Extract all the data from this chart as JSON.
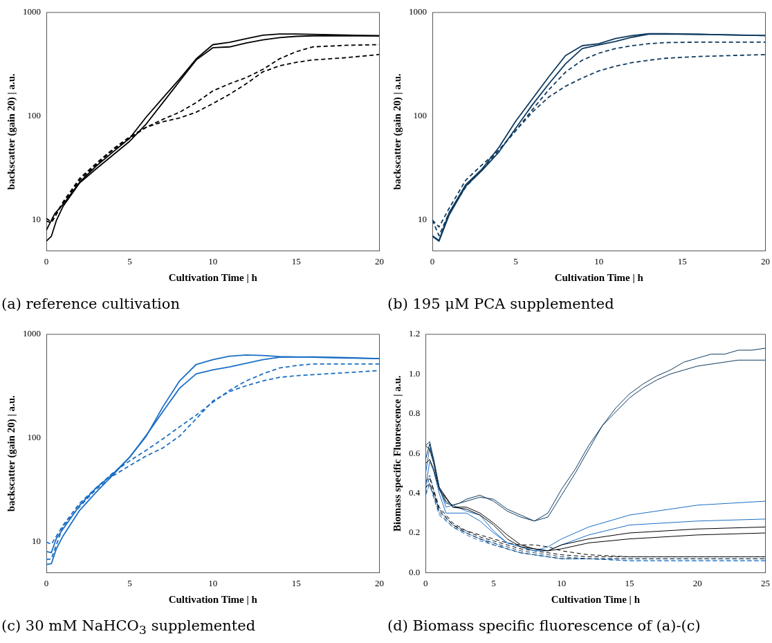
{
  "chart_data": [
    {
      "type": "line",
      "title": "(a) reference cultivation",
      "xlabel": "Cultivation Time | h",
      "ylabel": "backscatter (gain 20) | a.u.",
      "log": "y",
      "xlim": [
        0,
        20
      ],
      "xticks": [
        0,
        5,
        10,
        15,
        20
      ],
      "ylim": [
        5,
        1000
      ],
      "yticks": [
        10,
        100,
        1000
      ],
      "series": [
        {
          "color": "#000000",
          "line_style": "solid",
          "x": [
            0,
            0.5,
            1,
            2,
            3,
            4,
            5,
            6,
            7,
            8,
            9,
            10,
            11,
            12,
            13,
            14,
            15,
            16,
            18,
            20
          ],
          "values": [
            7.9,
            11.4,
            14,
            23,
            33,
            45,
            61,
            98,
            150,
            228,
            357,
            489,
            515,
            558,
            604,
            620,
            620,
            615,
            604,
            595
          ]
        },
        {
          "color": "#000000",
          "line_style": "solid",
          "x": [
            0,
            0.3,
            0.6,
            1,
            2,
            3,
            4,
            5,
            6,
            7,
            8,
            9,
            10,
            11,
            12,
            13,
            14,
            15,
            16,
            18,
            20
          ],
          "values": [
            6.2,
            6.9,
            9.8,
            13.4,
            22.6,
            31,
            42,
            57,
            84,
            135,
            217,
            348,
            457,
            465,
            507,
            543,
            572,
            588,
            595,
            595,
            595
          ]
        },
        {
          "color": "#000000",
          "line_style": "dashed",
          "x": [
            0,
            0.3,
            1,
            2,
            3,
            4,
            5,
            6,
            7,
            8,
            9,
            10,
            11,
            12,
            13,
            14,
            15,
            16,
            18,
            20
          ],
          "values": [
            10.3,
            9.5,
            14.8,
            25,
            35,
            48,
            63,
            78,
            93,
            109,
            135,
            175,
            205,
            235,
            282,
            357,
            418,
            465,
            482,
            489
          ]
        },
        {
          "color": "#000000",
          "line_style": "dashed",
          "x": [
            0,
            0.3,
            1,
            2,
            3,
            4,
            5,
            6,
            7,
            8,
            9,
            10,
            11,
            12,
            13,
            14,
            15,
            16,
            18,
            20
          ],
          "values": [
            9.7,
            9.3,
            14.5,
            24,
            34,
            47,
            61,
            78,
            88,
            96,
            109,
            132,
            162,
            205,
            267,
            305,
            330,
            348,
            366,
            393
          ]
        }
      ]
    },
    {
      "type": "line",
      "title": "(b) 195 μM PCA supplemented",
      "xlabel": "Cultivation Time | h",
      "ylabel": "backscatter (gain 20) | a.u.",
      "log": "y",
      "xlim": [
        0,
        20
      ],
      "xticks": [
        0,
        5,
        10,
        15,
        20
      ],
      "ylim": [
        5,
        1000
      ],
      "yticks": [
        10,
        100,
        1000
      ],
      "series": [
        {
          "color": "#0e3a5f",
          "line_style": "solid",
          "x": [
            0,
            0.4,
            1,
            2,
            3,
            4,
            5,
            6,
            7,
            8,
            9,
            10,
            11,
            12,
            13,
            14,
            16,
            18,
            20
          ],
          "values": [
            7.0,
            6.3,
            11.6,
            21.7,
            31,
            50,
            89,
            146,
            240,
            384,
            478,
            499,
            560,
            599,
            623,
            623,
            616,
            608,
            599
          ]
        },
        {
          "color": "#0e3a5f",
          "line_style": "solid",
          "x": [
            0,
            0.4,
            1,
            2,
            3,
            4,
            5,
            6,
            7,
            8,
            9,
            10,
            11,
            12,
            13,
            14,
            16,
            18,
            20
          ],
          "values": [
            6.9,
            6.2,
            11,
            21,
            30,
            45,
            76,
            128,
            205,
            320,
            449,
            486,
            525,
            577,
            617,
            620,
            615,
            606,
            598
          ]
        },
        {
          "color": "#0e3a5f",
          "line_style": "dashed",
          "x": [
            0,
            0.4,
            1,
            2,
            3,
            4,
            5,
            6,
            7,
            8,
            9,
            10,
            11,
            12,
            13,
            14,
            16,
            18,
            20
          ],
          "values": [
            9.9,
            8.5,
            12.8,
            24,
            34,
            47,
            72,
            115,
            180,
            266,
            346,
            405,
            449,
            478,
            499,
            512,
            517,
            517,
            517
          ]
        },
        {
          "color": "#0e3a5f",
          "line_style": "dashed",
          "x": [
            0,
            0.4,
            1,
            2,
            3,
            4,
            5,
            6,
            7,
            8,
            9,
            10,
            11,
            12,
            13,
            14,
            16,
            18,
            20
          ],
          "values": [
            9.9,
            7.0,
            11.6,
            20.6,
            31,
            47,
            72,
            109,
            153,
            194,
            233,
            273,
            303,
            328,
            346,
            361,
            376,
            384,
            392
          ]
        }
      ]
    },
    {
      "type": "line",
      "title": "(c) 30 mM NaHCO$_{3}$ supplemented",
      "xlabel": "Cultivation Time | h",
      "ylabel": "backscatter (gain 20) | a.u.",
      "log": "y",
      "xlim": [
        0,
        20
      ],
      "xticks": [
        0,
        5,
        10,
        15,
        20
      ],
      "ylim": [
        5,
        1000
      ],
      "yticks": [
        10,
        100,
        1000
      ],
      "series": [
        {
          "color": "#1a6ec4",
          "line_style": "solid",
          "x": [
            0,
            0.3,
            0.6,
            1,
            2,
            3,
            4,
            5,
            6,
            7,
            8,
            9,
            10,
            11,
            12,
            13,
            14,
            16,
            18,
            20
          ],
          "values": [
            8.0,
            7.8,
            10.7,
            13.2,
            22.3,
            33,
            45,
            65,
            104,
            200,
            355,
            512,
            569,
            615,
            631,
            625,
            610,
            600,
            590,
            583
          ]
        },
        {
          "color": "#1a6ec4",
          "line_style": "solid",
          "x": [
            0,
            0.3,
            0.6,
            1,
            2,
            3,
            4,
            5,
            6,
            7,
            8,
            9,
            10,
            11,
            12,
            13,
            14,
            16,
            18,
            20
          ],
          "values": [
            6.0,
            6.1,
            8.5,
            11.3,
            20,
            30,
            44,
            65,
            106,
            180,
            302,
            415,
            453,
            485,
            525,
            569,
            600,
            606,
            595,
            583
          ]
        },
        {
          "color": "#1a6ec4",
          "line_style": "dashed",
          "x": [
            0,
            0.3,
            1,
            2,
            3,
            4,
            5,
            6,
            7,
            8,
            9,
            10,
            11,
            12,
            13,
            14,
            15,
            16,
            18,
            20
          ],
          "values": [
            9.9,
            9.4,
            14.3,
            23.4,
            33,
            46,
            60,
            76,
            98,
            128,
            166,
            221,
            288,
            355,
            415,
            473,
            499,
            517,
            517,
            517
          ]
        },
        {
          "color": "#1a6ec4",
          "line_style": "dashed",
          "x": [
            0,
            0.3,
            1,
            2,
            3,
            4,
            5,
            6,
            7,
            8,
            9,
            10,
            11,
            12,
            13,
            14,
            15,
            16,
            18,
            20
          ],
          "values": [
            6.7,
            6.8,
            14,
            21.7,
            32,
            43,
            54,
            67,
            80,
            104,
            153,
            227,
            280,
            319,
            355,
            384,
            398,
            408,
            426,
            447
          ]
        }
      ]
    },
    {
      "type": "line",
      "title": "(d) Biomass specific fluorescence of (a)-(c)",
      "xlabel": "Cultivation Time | h",
      "ylabel": "Biomass specific Fluorescence | a.u.",
      "xlim": [
        0,
        25
      ],
      "xticks": [
        0,
        5,
        10,
        15,
        20,
        25
      ],
      "ylim": [
        0,
        1.2
      ],
      "yticks": [
        {
          "value": 0,
          "label": "0.0"
        },
        0.2,
        0.4,
        0.6,
        0.8,
        {
          "value": 1,
          "label": "1.0"
        },
        {
          "value": 1.2,
          "label": "1.2"
        }
      ],
      "series": [
        {
          "color": "#0e3a5f",
          "line_style": "solid",
          "x": [
            0,
            0.3,
            0.6,
            1,
            1.5,
            2,
            2.5,
            3,
            4,
            5,
            6,
            7,
            8,
            9,
            10,
            11,
            12,
            13,
            14,
            15,
            16,
            17,
            18,
            19,
            20,
            21,
            22,
            23,
            24,
            25
          ],
          "values": [
            0.64,
            0.66,
            0.57,
            0.43,
            0.36,
            0.34,
            0.35,
            0.37,
            0.39,
            0.36,
            0.31,
            0.28,
            0.26,
            0.3,
            0.42,
            0.52,
            0.64,
            0.74,
            0.83,
            0.9,
            0.95,
            0.99,
            1.02,
            1.06,
            1.08,
            1.1,
            1.1,
            1.12,
            1.12,
            1.13
          ]
        },
        {
          "color": "#0e3a5f",
          "line_style": "solid",
          "x": [
            0,
            0.3,
            0.6,
            1,
            1.5,
            2,
            2.5,
            3,
            4,
            5,
            6,
            7,
            8,
            9,
            10,
            11,
            12,
            13,
            14,
            15,
            16,
            17,
            18,
            19,
            20,
            21,
            22,
            23,
            24,
            25
          ],
          "values": [
            0.57,
            0.65,
            0.55,
            0.42,
            0.35,
            0.34,
            0.35,
            0.36,
            0.38,
            0.37,
            0.32,
            0.29,
            0.26,
            0.28,
            0.39,
            0.5,
            0.62,
            0.74,
            0.81,
            0.88,
            0.93,
            0.97,
            1.0,
            1.02,
            1.04,
            1.05,
            1.06,
            1.07,
            1.07,
            1.07
          ]
        },
        {
          "color": "#000000",
          "line_style": "solid",
          "x": [
            0,
            0.3,
            0.6,
            1,
            2,
            3,
            4,
            5,
            6,
            7,
            8,
            9,
            10,
            12,
            15,
            20,
            25
          ],
          "values": [
            0.64,
            0.62,
            0.55,
            0.43,
            0.33,
            0.33,
            0.3,
            0.25,
            0.19,
            0.14,
            0.12,
            0.11,
            0.14,
            0.17,
            0.2,
            0.22,
            0.23
          ]
        },
        {
          "color": "#000000",
          "line_style": "solid",
          "x": [
            0,
            0.3,
            0.6,
            1,
            2,
            3,
            4,
            5,
            6,
            7,
            8,
            9,
            10,
            12,
            15,
            20,
            25
          ],
          "values": [
            0.55,
            0.57,
            0.52,
            0.42,
            0.33,
            0.32,
            0.29,
            0.24,
            0.17,
            0.13,
            0.12,
            0.11,
            0.12,
            0.15,
            0.17,
            0.19,
            0.2
          ]
        },
        {
          "color": "#1a6ec4",
          "line_style": "solid",
          "x": [
            0,
            0.3,
            0.6,
            1,
            1.5,
            2,
            3,
            4,
            5,
            6,
            7,
            8,
            9,
            10,
            12,
            15,
            20,
            25
          ],
          "values": [
            0.5,
            0.63,
            0.57,
            0.43,
            0.33,
            0.34,
            0.31,
            0.29,
            0.21,
            0.15,
            0.13,
            0.11,
            0.13,
            0.17,
            0.23,
            0.29,
            0.34,
            0.36
          ]
        },
        {
          "color": "#1a6ec4",
          "line_style": "solid",
          "x": [
            0,
            0.3,
            0.6,
            1,
            1.5,
            2,
            3,
            4,
            5,
            6,
            7,
            8,
            9,
            10,
            12,
            15,
            20,
            25
          ],
          "values": [
            0.43,
            0.56,
            0.51,
            0.4,
            0.3,
            0.3,
            0.3,
            0.26,
            0.2,
            0.15,
            0.13,
            0.11,
            0.11,
            0.14,
            0.19,
            0.24,
            0.26,
            0.27
          ]
        },
        {
          "color": "#000000",
          "line_style": "dashed",
          "x": [
            0,
            0.3,
            1,
            2,
            3,
            4,
            5,
            6,
            7,
            8,
            9,
            10,
            12,
            15,
            20,
            25
          ],
          "values": [
            0.46,
            0.48,
            0.33,
            0.25,
            0.21,
            0.19,
            0.17,
            0.15,
            0.14,
            0.14,
            0.13,
            0.11,
            0.09,
            0.08,
            0.08,
            0.08
          ]
        },
        {
          "color": "#000000",
          "line_style": "dashed",
          "x": [
            0,
            0.3,
            1,
            2,
            3,
            4,
            5,
            6,
            7,
            8,
            9,
            10,
            12,
            15,
            20,
            25
          ],
          "values": [
            0.43,
            0.45,
            0.32,
            0.24,
            0.21,
            0.18,
            0.16,
            0.14,
            0.12,
            0.11,
            0.1,
            0.09,
            0.08,
            0.08,
            0.08,
            0.08
          ]
        },
        {
          "color": "#0e3a5f",
          "line_style": "dashed",
          "x": [
            0,
            0.3,
            1,
            2,
            3,
            4,
            5,
            6,
            7,
            8,
            9,
            10,
            12,
            15,
            20,
            25
          ],
          "values": [
            0.42,
            0.48,
            0.31,
            0.24,
            0.2,
            0.17,
            0.15,
            0.13,
            0.11,
            0.1,
            0.09,
            0.08,
            0.07,
            0.07,
            0.07,
            0.07
          ]
        },
        {
          "color": "#0e3a5f",
          "line_style": "dashed",
          "x": [
            0,
            0.3,
            1,
            2,
            3,
            4,
            5,
            6,
            7,
            8,
            9,
            10,
            12,
            15,
            20,
            25
          ],
          "values": [
            0.4,
            0.45,
            0.3,
            0.23,
            0.2,
            0.17,
            0.14,
            0.12,
            0.1,
            0.09,
            0.08,
            0.07,
            0.07,
            0.07,
            0.07,
            0.07
          ]
        },
        {
          "color": "#1a6ec4",
          "line_style": "dashed",
          "x": [
            0,
            0.3,
            1,
            2,
            3,
            4,
            5,
            6,
            7,
            8,
            9,
            10,
            12,
            15,
            20,
            25
          ],
          "values": [
            0.45,
            0.49,
            0.31,
            0.24,
            0.2,
            0.17,
            0.15,
            0.12,
            0.1,
            0.09,
            0.08,
            0.07,
            0.07,
            0.06,
            0.06,
            0.06
          ]
        },
        {
          "color": "#1a6ec4",
          "line_style": "dashed",
          "x": [
            0,
            0.3,
            1,
            2,
            3,
            4,
            5,
            6,
            7,
            8,
            9,
            10,
            12,
            15,
            20,
            25
          ],
          "values": [
            0.39,
            0.44,
            0.29,
            0.23,
            0.19,
            0.16,
            0.14,
            0.12,
            0.1,
            0.09,
            0.08,
            0.07,
            0.07,
            0.06,
            0.06,
            0.06
          ]
        }
      ]
    }
  ]
}
